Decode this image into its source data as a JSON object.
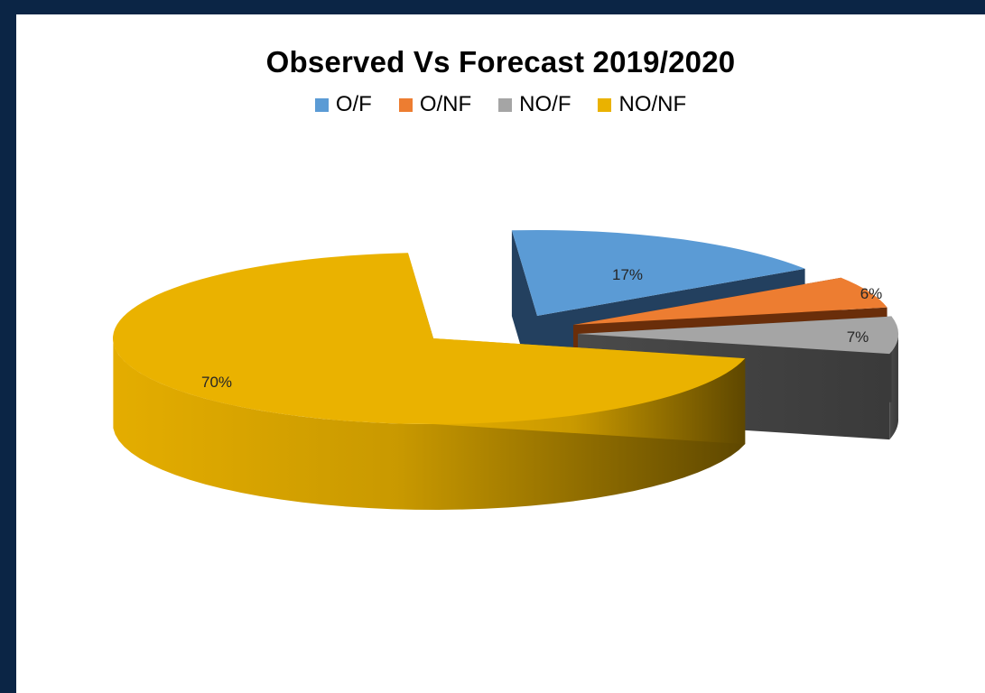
{
  "chart_data": {
    "type": "pie",
    "title": "Observed Vs Forecast 2019/2020",
    "legend_position": "top",
    "categories": [
      "O/F",
      "O/NF",
      "NO/F",
      "NO/NF"
    ],
    "values": [
      17,
      6,
      7,
      70
    ],
    "labels": [
      "17%",
      "6%",
      "7%",
      "70%"
    ],
    "colors": [
      "#5b9bd5",
      "#ed7d31",
      "#a5a5a5",
      "#eab200"
    ],
    "exploded": [
      true,
      true,
      true,
      false
    ]
  }
}
